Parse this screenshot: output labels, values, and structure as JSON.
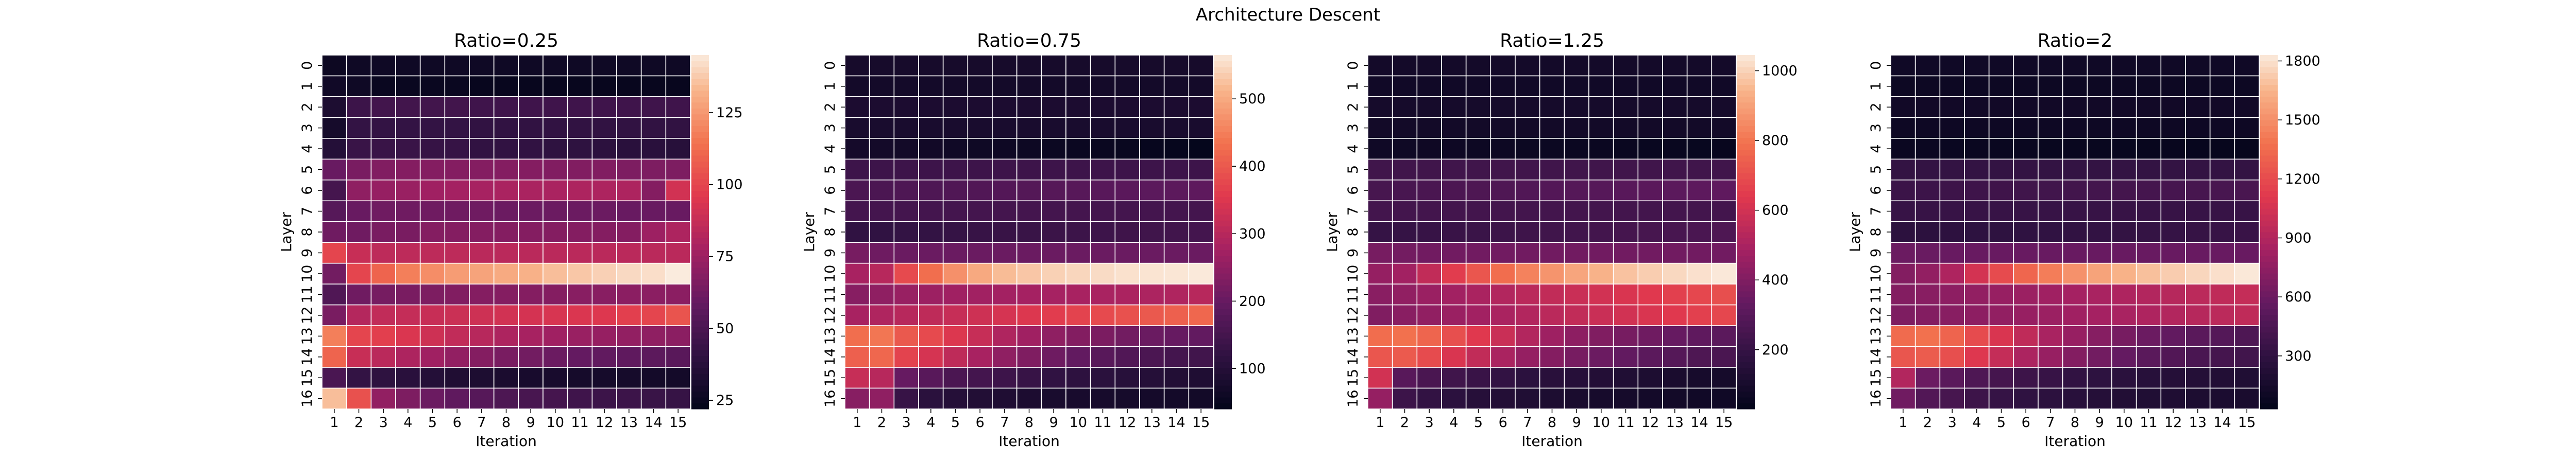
{
  "figure_title": "Architecture Descent",
  "chart_data": [
    {
      "type": "heatmap",
      "title": "Ratio=0.25",
      "xlabel": "Iteration",
      "ylabel": "Layer",
      "x": [
        1,
        2,
        3,
        4,
        5,
        6,
        7,
        8,
        9,
        10,
        11,
        12,
        13,
        14,
        15
      ],
      "y": [
        0,
        1,
        2,
        3,
        4,
        5,
        6,
        7,
        8,
        9,
        10,
        11,
        12,
        13,
        14,
        15,
        16
      ],
      "vmin": 22,
      "vmax": 145,
      "colorbar_ticks": [
        25,
        50,
        75,
        100,
        125
      ],
      "values": [
        [
          26,
          27,
          27,
          27,
          27,
          27,
          27,
          27,
          27,
          27,
          27,
          27,
          27,
          27,
          27
        ],
        [
          28,
          27,
          25,
          25,
          25,
          25,
          24,
          24,
          24,
          24,
          24,
          24,
          24,
          24,
          24
        ],
        [
          33,
          45,
          47,
          47,
          47,
          47,
          46,
          46,
          46,
          46,
          46,
          46,
          46,
          46,
          46
        ],
        [
          30,
          42,
          42,
          42,
          42,
          42,
          41,
          41,
          41,
          41,
          41,
          41,
          41,
          41,
          41
        ],
        [
          36,
          44,
          44,
          44,
          43,
          43,
          41,
          41,
          41,
          40,
          40,
          39,
          38,
          38,
          37
        ],
        [
          60,
          65,
          67,
          68,
          68,
          68,
          68,
          68,
          68,
          67,
          67,
          67,
          66,
          66,
          66
        ],
        [
          48,
          71,
          73,
          74,
          76,
          77,
          78,
          79,
          79,
          79,
          80,
          80,
          80,
          68,
          91
        ],
        [
          54,
          60,
          62,
          62,
          62,
          62,
          62,
          61,
          61,
          61,
          61,
          61,
          60,
          60,
          60
        ],
        [
          62,
          62,
          65,
          65,
          68,
          68,
          68,
          68,
          68,
          68,
          68,
          68,
          68,
          75,
          80
        ],
        [
          100,
          88,
          85,
          85,
          85,
          85,
          84,
          84,
          84,
          84,
          84,
          84,
          84,
          84,
          84
        ],
        [
          63,
          100,
          110,
          118,
          122,
          126,
          128,
          130,
          132,
          135,
          137,
          139,
          141,
          142,
          145
        ],
        [
          52,
          62,
          64,
          65,
          66,
          67,
          68,
          68,
          68,
          68,
          69,
          69,
          70,
          70,
          70
        ],
        [
          65,
          82,
          86,
          87,
          88,
          89,
          90,
          91,
          92,
          93,
          94,
          95,
          98,
          100,
          105
        ],
        [
          118,
          100,
          98,
          94,
          90,
          86,
          83,
          80,
          78,
          76,
          74,
          73,
          72,
          71,
          70
        ],
        [
          110,
          88,
          84,
          80,
          76,
          72,
          68,
          65,
          63,
          61,
          59,
          58,
          57,
          56,
          55
        ],
        [
          50,
          42,
          40,
          38,
          36,
          34,
          33,
          32,
          31,
          31,
          30,
          30,
          30,
          29,
          29
        ],
        [
          135,
          104,
          72,
          66,
          61,
          57,
          54,
          51,
          49,
          48,
          46,
          45,
          45,
          44,
          43
        ]
      ]
    },
    {
      "type": "heatmap",
      "title": "Ratio=0.75",
      "xlabel": "Iteration",
      "ylabel": "Layer",
      "x": [
        1,
        2,
        3,
        4,
        5,
        6,
        7,
        8,
        9,
        10,
        11,
        12,
        13,
        14,
        15
      ],
      "y": [
        0,
        1,
        2,
        3,
        4,
        5,
        6,
        7,
        8,
        9,
        10,
        11,
        12,
        13,
        14,
        15,
        16
      ],
      "vmin": 40,
      "vmax": 565,
      "colorbar_ticks": [
        100,
        200,
        300,
        400,
        500
      ],
      "values": [
        [
          75,
          75,
          75,
          75,
          75,
          75,
          75,
          75,
          75,
          75,
          75,
          75,
          75,
          75,
          75
        ],
        [
          70,
          70,
          70,
          70,
          70,
          70,
          70,
          70,
          70,
          70,
          70,
          70,
          70,
          70,
          70
        ],
        [
          85,
          85,
          85,
          85,
          85,
          85,
          85,
          85,
          85,
          85,
          85,
          85,
          85,
          85,
          85
        ],
        [
          80,
          80,
          80,
          80,
          80,
          80,
          80,
          80,
          80,
          80,
          80,
          80,
          80,
          80,
          80
        ],
        [
          72,
          70,
          68,
          66,
          64,
          62,
          60,
          58,
          56,
          54,
          52,
          50,
          48,
          46,
          44
        ],
        [
          140,
          140,
          140,
          140,
          140,
          140,
          140,
          140,
          140,
          140,
          140,
          140,
          140,
          140,
          140
        ],
        [
          160,
          160,
          165,
          165,
          168,
          170,
          172,
          174,
          176,
          178,
          180,
          182,
          184,
          186,
          188
        ],
        [
          150,
          150,
          150,
          150,
          150,
          150,
          150,
          150,
          150,
          150,
          150,
          150,
          150,
          150,
          150
        ],
        [
          120,
          120,
          125,
          125,
          128,
          130,
          132,
          134,
          136,
          138,
          140,
          142,
          144,
          146,
          150
        ],
        [
          220,
          210,
          205,
          205,
          205,
          205,
          205,
          205,
          205,
          205,
          205,
          205,
          205,
          205,
          205
        ],
        [
          280,
          300,
          380,
          430,
          470,
          500,
          520,
          530,
          540,
          545,
          550,
          555,
          558,
          560,
          563
        ],
        [
          240,
          250,
          260,
          265,
          270,
          272,
          274,
          276,
          278,
          280,
          282,
          284,
          286,
          290,
          300
        ],
        [
          280,
          290,
          300,
          310,
          320,
          330,
          340,
          350,
          360,
          370,
          380,
          390,
          400,
          410,
          420
        ],
        [
          430,
          440,
          400,
          380,
          350,
          320,
          290,
          270,
          250,
          235,
          225,
          215,
          205,
          200,
          195
        ],
        [
          410,
          420,
          370,
          340,
          310,
          280,
          250,
          230,
          210,
          195,
          180,
          170,
          160,
          150,
          145
        ],
        [
          320,
          300,
          200,
          180,
          160,
          150,
          140,
          130,
          120,
          115,
          110,
          105,
          100,
          95,
          90
        ],
        [
          240,
          250,
          130,
          110,
          100,
          95,
          90,
          85,
          80,
          78,
          76,
          74,
          72,
          70,
          68
        ]
      ]
    },
    {
      "type": "heatmap",
      "title": "Ratio=1.25",
      "xlabel": "Iteration",
      "ylabel": "Layer",
      "x": [
        1,
        2,
        3,
        4,
        5,
        6,
        7,
        8,
        9,
        10,
        11,
        12,
        13,
        14,
        15
      ],
      "y": [
        0,
        1,
        2,
        3,
        4,
        5,
        6,
        7,
        8,
        9,
        10,
        11,
        12,
        13,
        14,
        15,
        16
      ],
      "vmin": 30,
      "vmax": 1045,
      "colorbar_ticks": [
        200,
        400,
        600,
        800,
        1000
      ],
      "values": [
        [
          90,
          90,
          90,
          90,
          90,
          90,
          90,
          90,
          90,
          90,
          90,
          90,
          90,
          90,
          90
        ],
        [
          80,
          80,
          80,
          80,
          80,
          80,
          80,
          80,
          80,
          80,
          80,
          80,
          80,
          80,
          80
        ],
        [
          95,
          95,
          95,
          95,
          95,
          95,
          95,
          95,
          95,
          95,
          95,
          95,
          95,
          95,
          95
        ],
        [
          85,
          85,
          85,
          85,
          85,
          85,
          85,
          85,
          85,
          85,
          85,
          85,
          85,
          85,
          85
        ],
        [
          75,
          72,
          70,
          68,
          66,
          64,
          62,
          60,
          58,
          56,
          54,
          52,
          50,
          48,
          46
        ],
        [
          230,
          230,
          230,
          230,
          230,
          230,
          230,
          230,
          230,
          230,
          230,
          230,
          230,
          230,
          230
        ],
        [
          250,
          255,
          260,
          265,
          270,
          275,
          280,
          285,
          290,
          295,
          300,
          305,
          310,
          315,
          320
        ],
        [
          240,
          240,
          240,
          240,
          240,
          240,
          240,
          240,
          240,
          240,
          240,
          240,
          240,
          240,
          240
        ],
        [
          200,
          200,
          205,
          210,
          215,
          220,
          225,
          230,
          235,
          240,
          245,
          250,
          255,
          260,
          270
        ],
        [
          380,
          370,
          365,
          365,
          365,
          365,
          365,
          365,
          365,
          365,
          365,
          365,
          365,
          365,
          365
        ],
        [
          450,
          480,
          560,
          650,
          720,
          780,
          830,
          870,
          910,
          940,
          970,
          990,
          1010,
          1025,
          1040
        ],
        [
          420,
          440,
          460,
          480,
          500,
          520,
          540,
          560,
          580,
          600,
          620,
          640,
          660,
          680,
          700
        ],
        [
          400,
          420,
          440,
          460,
          480,
          500,
          520,
          540,
          560,
          580,
          600,
          620,
          640,
          660,
          680
        ],
        [
          780,
          790,
          760,
          700,
          640,
          580,
          520,
          470,
          430,
          400,
          380,
          360,
          340,
          320,
          310
        ],
        [
          720,
          730,
          690,
          620,
          560,
          500,
          450,
          410,
          380,
          350,
          330,
          310,
          290,
          270,
          260
        ],
        [
          600,
          300,
          260,
          230,
          210,
          190,
          170,
          160,
          150,
          140,
          130,
          120,
          110,
          100,
          95
        ],
        [
          450,
          220,
          190,
          170,
          150,
          140,
          130,
          120,
          110,
          100,
          95,
          90,
          85,
          80,
          75
        ]
      ]
    },
    {
      "type": "heatmap",
      "title": "Ratio=2",
      "xlabel": "Iteration",
      "ylabel": "Layer",
      "x": [
        1,
        2,
        3,
        4,
        5,
        6,
        7,
        8,
        9,
        10,
        11,
        12,
        13,
        14,
        15
      ],
      "y": [
        0,
        1,
        2,
        3,
        4,
        5,
        6,
        7,
        8,
        9,
        10,
        11,
        12,
        13,
        14,
        15,
        16
      ],
      "vmin": 30,
      "vmax": 1830,
      "colorbar_ticks": [
        300,
        600,
        900,
        1200,
        1500,
        1800
      ],
      "values": [
        [
          110,
          110,
          110,
          110,
          110,
          110,
          110,
          110,
          110,
          110,
          110,
          110,
          110,
          110,
          110
        ],
        [
          90,
          90,
          90,
          90,
          90,
          90,
          90,
          90,
          90,
          90,
          90,
          90,
          90,
          90,
          90
        ],
        [
          120,
          120,
          120,
          120,
          120,
          120,
          120,
          120,
          120,
          120,
          120,
          120,
          120,
          120,
          120
        ],
        [
          100,
          100,
          100,
          100,
          100,
          100,
          100,
          100,
          100,
          100,
          100,
          100,
          100,
          100,
          100
        ],
        [
          80,
          78,
          76,
          74,
          72,
          70,
          68,
          66,
          64,
          62,
          60,
          58,
          56,
          54,
          52
        ],
        [
          320,
          320,
          320,
          320,
          320,
          320,
          320,
          320,
          320,
          320,
          320,
          320,
          320,
          320,
          320
        ],
        [
          360,
          365,
          370,
          375,
          380,
          385,
          390,
          395,
          400,
          405,
          410,
          415,
          420,
          425,
          430
        ],
        [
          340,
          340,
          340,
          340,
          340,
          340,
          340,
          340,
          340,
          340,
          340,
          340,
          340,
          340,
          340
        ],
        [
          280,
          280,
          285,
          290,
          295,
          300,
          305,
          310,
          315,
          320,
          325,
          330,
          335,
          340,
          350
        ],
        [
          600,
          590,
          585,
          585,
          585,
          585,
          585,
          585,
          585,
          585,
          585,
          585,
          585,
          585,
          585
        ],
        [
          700,
          760,
          880,
          1050,
          1200,
          1330,
          1430,
          1510,
          1580,
          1640,
          1690,
          1730,
          1760,
          1790,
          1820
        ],
        [
          700,
          720,
          740,
          760,
          780,
          800,
          820,
          840,
          860,
          880,
          900,
          920,
          940,
          960,
          980
        ],
        [
          680,
          700,
          720,
          740,
          760,
          780,
          800,
          820,
          840,
          860,
          880,
          900,
          920,
          940,
          960
        ],
        [
          1350,
          1380,
          1320,
          1200,
          1080,
          960,
          860,
          780,
          710,
          650,
          600,
          560,
          520,
          490,
          460
        ],
        [
          1250,
          1280,
          1220,
          1100,
          980,
          870,
          780,
          700,
          630,
          570,
          520,
          480,
          440,
          410,
          390
        ],
        [
          900,
          600,
          520,
          460,
          410,
          370,
          340,
          310,
          290,
          270,
          250,
          240,
          230,
          220,
          210
        ],
        [
          620,
          480,
          420,
          370,
          330,
          300,
          280,
          260,
          240,
          220,
          210,
          200,
          190,
          180,
          170
        ]
      ]
    }
  ]
}
